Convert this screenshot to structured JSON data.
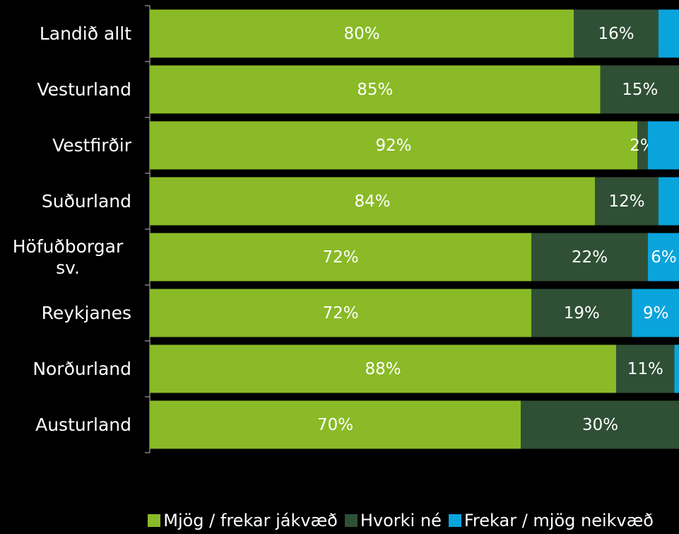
{
  "chart_data": {
    "type": "stacked-bar-horizontal",
    "categories": [
      "Landið allt",
      "Vesturland",
      "Vestfirðir",
      "Suðurland",
      "Höfuðborgar sv.",
      "Reykjanes",
      "Norðurland",
      "Austurland"
    ],
    "xlim": [
      0,
      100
    ],
    "series": [
      {
        "name": "Mjög / frekar jákvæð",
        "color": "#8aba27",
        "values": [
          80,
          85,
          92,
          84,
          72,
          72,
          88,
          70
        ],
        "value_labels": [
          "80%",
          "85%",
          "92%",
          "84%",
          "72%",
          "72%",
          "88%",
          "70%"
        ]
      },
      {
        "name": "Hvorki né",
        "color": "#2f5035",
        "values": [
          16,
          15,
          2,
          12,
          22,
          19,
          11,
          30
        ],
        "value_labels": [
          "16%",
          "15%",
          "2%",
          "12%",
          "22%",
          "19%",
          "11%",
          "30%"
        ]
      },
      {
        "name": "Frekar / mjög neikvæð",
        "color": "#0aa4dc",
        "values": [
          4,
          0,
          6,
          4,
          6,
          9,
          1,
          0
        ],
        "value_labels": [
          null,
          null,
          null,
          null,
          "6%",
          "9%",
          null,
          null
        ]
      }
    ]
  }
}
